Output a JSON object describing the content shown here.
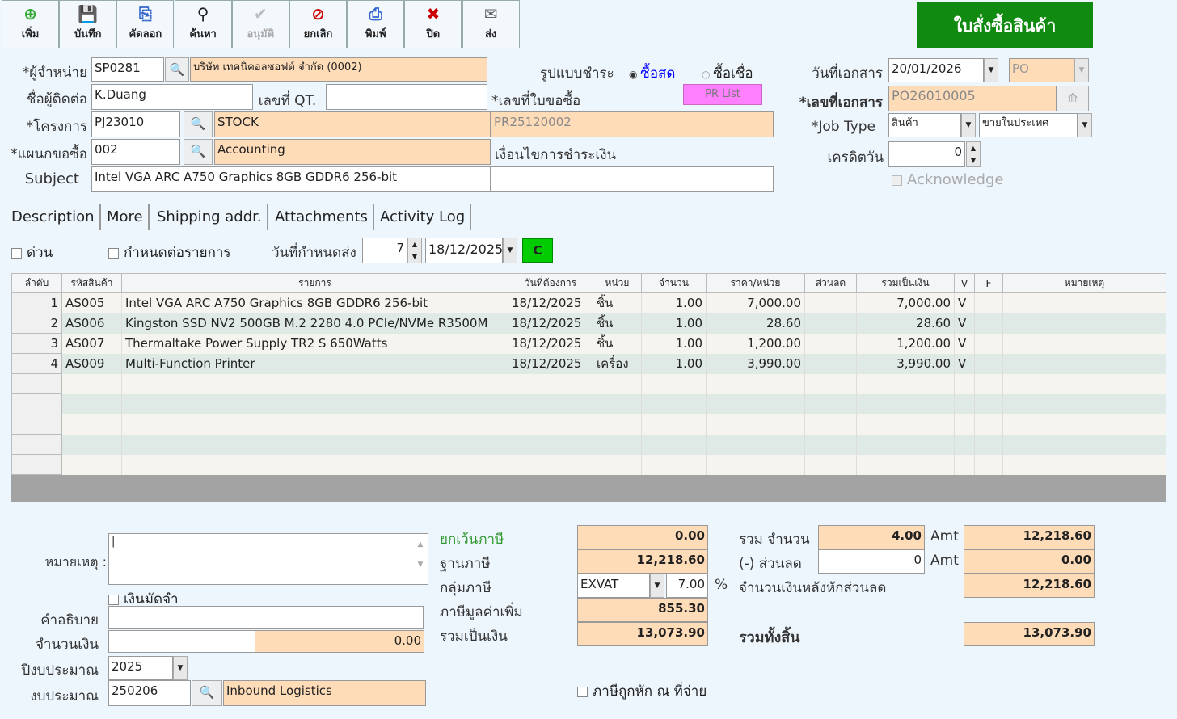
{
  "toolbar": [
    {
      "label": "เพิ่ม",
      "icon": "add-icon",
      "glyph": "⊕",
      "color": "#3a3"
    },
    {
      "label": "บันทึก",
      "icon": "save-icon",
      "glyph": "💾",
      "color": "#444"
    },
    {
      "label": "คัดลอก",
      "icon": "copy-icon",
      "glyph": "⎘",
      "color": "#36c"
    },
    {
      "label": "ค้นหา",
      "icon": "binoculars-icon",
      "glyph": "⚲",
      "color": "#222"
    },
    {
      "label": "อนุมัติ",
      "icon": "approve-icon",
      "glyph": "✔",
      "color": "#bbb",
      "disabled": true
    },
    {
      "label": "ยกเลิก",
      "icon": "cancel-icon",
      "glyph": "⊘",
      "color": "#c00"
    },
    {
      "label": "พิมพ์",
      "icon": "print-icon",
      "glyph": "⎙",
      "color": "#36c"
    },
    {
      "label": "ปิด",
      "icon": "close-icon",
      "glyph": "✖",
      "color": "#c00"
    },
    {
      "label": "ส่ง",
      "icon": "send-icon",
      "glyph": "✉",
      "color": "#666"
    }
  ],
  "title": "ใบสั่งซื้อสินค้า",
  "colors": {
    "title_bg": "#118a11",
    "peach": "#ffdcb8",
    "background": "#eef6fd",
    "pr_button": "#ff80ff"
  },
  "form": {
    "vendor_label": "*ผู้จำหน่าย",
    "vendor_code": "SP0281",
    "vendor_name": "บริษัท เทคนิคอลซอฟต์ จำกัด (0002)",
    "contact_label": "ชื่อผู้ติดต่อ",
    "contact": "K.Duang",
    "qt_label": "เลขที่ QT.",
    "qt": "",
    "project_label": "*โครงการ",
    "project_code": "PJ23010",
    "project_name": "STOCK",
    "dept_label": "*แผนกขอซื้อ",
    "dept_code": "002",
    "dept_name": "Accounting",
    "subject_label": "Subject",
    "subject": "Intel VGA ARC A750 Graphics 8GB GDDR6 256-bit",
    "pay_label": "รูปแบบชำระ",
    "pay_cash": "ซื้อสด",
    "pay_credit": "ซื้อเชื่อ",
    "pr_label": "*เลขที่ใบขอซื้อ",
    "pr_button": "PR List",
    "pr_no": "PR25120002",
    "pay_cond_label": "เงื่อนไขการชำระเงิน",
    "pay_cond": "",
    "doc_date_label": "วันที่เอกสาร",
    "doc_date": "20/01/2026",
    "doc_type": "PO",
    "doc_no_label": "*เลขที่เอกสาร",
    "doc_no": "PO26010005",
    "job_type_label": "*Job Type",
    "job_type": "สินค้า",
    "job_sub": "ขายในประเทศ",
    "credit_label": "เครดิตวัน",
    "credit": "0",
    "ack_label": "Acknowledge"
  },
  "tabs": [
    "Description",
    "More",
    "Shipping addr.",
    "Attachments",
    "Activity Log"
  ],
  "opts": {
    "urgent": "ด่วน",
    "per_item": "กำหนดต่อรายการ",
    "due_label": "วันที่กำหนดส่ง",
    "due_days": "7",
    "due_date": "18/12/2025",
    "c_button": "C"
  },
  "table": {
    "headers": [
      "ลำดับ",
      "รหัสสินค้า",
      "รายการ",
      "วันที่ต้องการ",
      "หน่วย",
      "จำนวน",
      "ราคา/หน่วย",
      "ส่วนลด",
      "รวมเป็นเงิน",
      "V",
      "F",
      "หมายเหตุ"
    ],
    "rows": [
      [
        "1",
        "AS005",
        "Intel VGA ARC A750 Graphics 8GB GDDR6 256-bit",
        "18/12/2025",
        "ชิ้น",
        "1.00",
        "7,000.00",
        "",
        "7,000.00",
        "V",
        "",
        ""
      ],
      [
        "2",
        "AS006",
        "Kingston SSD NV2 500GB M.2 2280 4.0 PCIe/NVMe R3500M",
        "18/12/2025",
        "ชิ้น",
        "1.00",
        "28.60",
        "",
        "28.60",
        "V",
        "",
        ""
      ],
      [
        "3",
        "AS007",
        "Thermaltake Power Supply TR2 S 650Watts",
        "18/12/2025",
        "ชิ้น",
        "1.00",
        "1,200.00",
        "",
        "1,200.00",
        "V",
        "",
        ""
      ],
      [
        "4",
        "AS009",
        "Multi-Function Printer",
        "18/12/2025",
        "เครื่อง",
        "1.00",
        "3,990.00",
        "",
        "3,990.00",
        "V",
        "",
        ""
      ]
    ]
  },
  "bottom": {
    "remark_label": "หมายเหตุ :",
    "remark": "",
    "deposit_label": "เงินมัดจำ",
    "desc_label": "คำอธิบาย",
    "desc": "",
    "amount_label": "จำนวนเงิน",
    "amount": "0.00",
    "budget_year_label": "ปีงบประมาณ",
    "budget_year": "2025",
    "budget_label": "งบประมาณ",
    "budget_code": "250206",
    "budget_name": "Inbound Logistics",
    "tax_exempt_label": "ยกเว้นภาษี",
    "tax_exempt": "0.00",
    "tax_base_label": "ฐานภาษี",
    "tax_base": "12,218.60",
    "tax_group_label": "กลุ่มภาษี",
    "tax_group": "EXVAT",
    "tax_rate": "7.00",
    "pct": "%",
    "vat_label": "ภาษีมูลค่าเพิ่ม",
    "vat": "855.30",
    "total_label": "รวมเป็นเงิน",
    "total": "13,073.90",
    "wht_label": "ภาษีถูกหัก ณ ที่จ่าย",
    "qty_label": "รวม จำนวน",
    "qty": "4.00",
    "amt": "Amt",
    "amt_value": "12,218.60",
    "discount_label": "(-) ส่วนลด",
    "discount": "0",
    "discount_amt": "0.00",
    "after_disc_label": "จำนวนเงินหลังหักส่วนลด",
    "after_disc": "12,218.60",
    "grand_label": "รวมทั้งสิ้น",
    "grand": "13,073.90"
  }
}
